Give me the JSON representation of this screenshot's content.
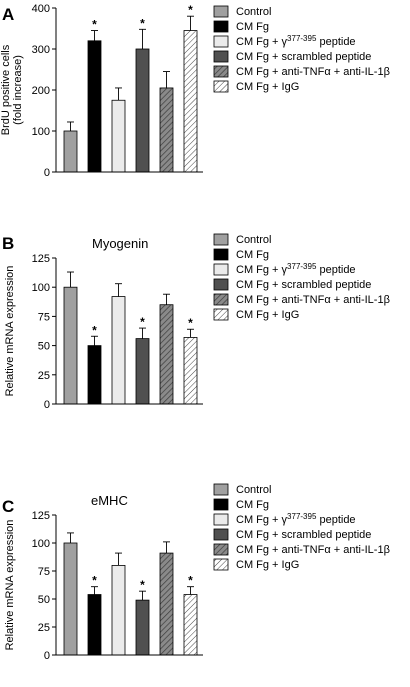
{
  "chart_data": [
    {
      "panel": "A",
      "title": "",
      "type": "bar",
      "ylabel_lines": [
        "BrdU positive cells",
        "(fold increase)"
      ],
      "xlabel": "",
      "ylim": [
        0,
        400
      ],
      "yticks": [
        0,
        100,
        200,
        300,
        400
      ],
      "categories": [
        "Control",
        "CM Fg",
        "CM Fg + γ377-395 peptide",
        "CM Fg + scrambled peptide",
        "CM Fg + anti-TNFα + anti-IL-1β",
        "CM Fg + IgG"
      ],
      "values": [
        100,
        320,
        175,
        300,
        205,
        345
      ],
      "errors": [
        22,
        25,
        30,
        48,
        40,
        35
      ],
      "significant": [
        false,
        true,
        false,
        true,
        false,
        true
      ],
      "star_symbol": "*"
    },
    {
      "panel": "B",
      "title": "Myogenin",
      "type": "bar",
      "ylabel_lines": [
        "Relative mRNA expression"
      ],
      "xlabel": "",
      "ylim": [
        0,
        125
      ],
      "yticks": [
        0,
        25,
        50,
        75,
        100,
        125
      ],
      "categories": [
        "Control",
        "CM Fg",
        "CM Fg + γ377-395 peptide",
        "CM Fg + scrambled peptide",
        "CM Fg + anti-TNFα + anti-IL-1β",
        "CM Fg + IgG"
      ],
      "values": [
        100,
        50,
        92,
        56,
        85,
        57
      ],
      "errors": [
        13,
        8,
        11,
        9,
        9,
        7
      ],
      "significant": [
        false,
        true,
        false,
        true,
        false,
        true
      ],
      "star_symbol": "*"
    },
    {
      "panel": "C",
      "title": "eMHC",
      "type": "bar",
      "ylabel_lines": [
        "Relative mRNA expression"
      ],
      "xlabel": "",
      "ylim": [
        0,
        125
      ],
      "yticks": [
        0,
        25,
        50,
        75,
        100,
        125
      ],
      "categories": [
        "Control",
        "CM Fg",
        "CM Fg + γ377-395 peptide",
        "CM Fg + scrambled peptide",
        "CM Fg + anti-TNFα + anti-IL-1β",
        "CM Fg + IgG"
      ],
      "values": [
        100,
        54,
        80,
        49,
        91,
        54
      ],
      "errors": [
        9,
        7,
        11,
        8,
        10,
        7
      ],
      "significant": [
        false,
        true,
        false,
        true,
        false,
        true
      ],
      "star_symbol": "*"
    }
  ],
  "legend": [
    {
      "prefix": "Control",
      "sup": "",
      "suffix": "",
      "fill": "solid",
      "color": "#a0a0a0"
    },
    {
      "prefix": "CM Fg",
      "sup": "",
      "suffix": "",
      "fill": "solid",
      "color": "#000000"
    },
    {
      "prefix": "CM Fg + γ",
      "sup": "377-395",
      "suffix": " peptide",
      "fill": "solid",
      "color": "#ebebeb"
    },
    {
      "prefix": "CM Fg + scrambled peptide",
      "sup": "",
      "suffix": "",
      "fill": "solid",
      "color": "#505050"
    },
    {
      "prefix": "CM Fg + anti-TNFα + anti-IL-1β",
      "sup": "",
      "suffix": "",
      "fill": "hatch",
      "color": "#8a8a8a"
    },
    {
      "prefix": "CM Fg + IgG",
      "sup": "",
      "suffix": "",
      "fill": "hatch",
      "color": "#ffffff"
    }
  ]
}
